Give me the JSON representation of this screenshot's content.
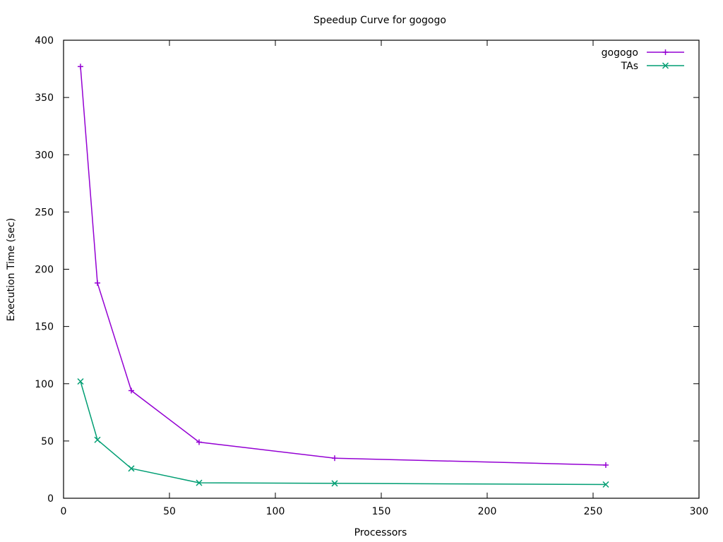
{
  "chart_data": {
    "type": "line",
    "title": "Speedup Curve for gogogo",
    "xlabel": "Processors",
    "ylabel": "Execution Time (sec)",
    "xlim": [
      0,
      300
    ],
    "ylim": [
      0,
      400
    ],
    "xticks": [
      0,
      50,
      100,
      150,
      200,
      250,
      300
    ],
    "yticks": [
      0,
      50,
      100,
      150,
      200,
      250,
      300,
      350,
      400
    ],
    "grid": false,
    "legend_position": "top-right",
    "series": [
      {
        "name": "gogogo",
        "color": "#9400d3",
        "marker": "plus",
        "points": [
          [
            8,
            377
          ],
          [
            16,
            188
          ],
          [
            32,
            94
          ],
          [
            64,
            49
          ],
          [
            128,
            35
          ],
          [
            256,
            29
          ]
        ]
      },
      {
        "name": "TAs",
        "color": "#009e73",
        "marker": "cross",
        "points": [
          [
            8,
            102
          ],
          [
            16,
            51
          ],
          [
            32,
            26
          ],
          [
            64,
            13.5
          ],
          [
            128,
            13
          ],
          [
            256,
            12
          ]
        ]
      }
    ]
  }
}
